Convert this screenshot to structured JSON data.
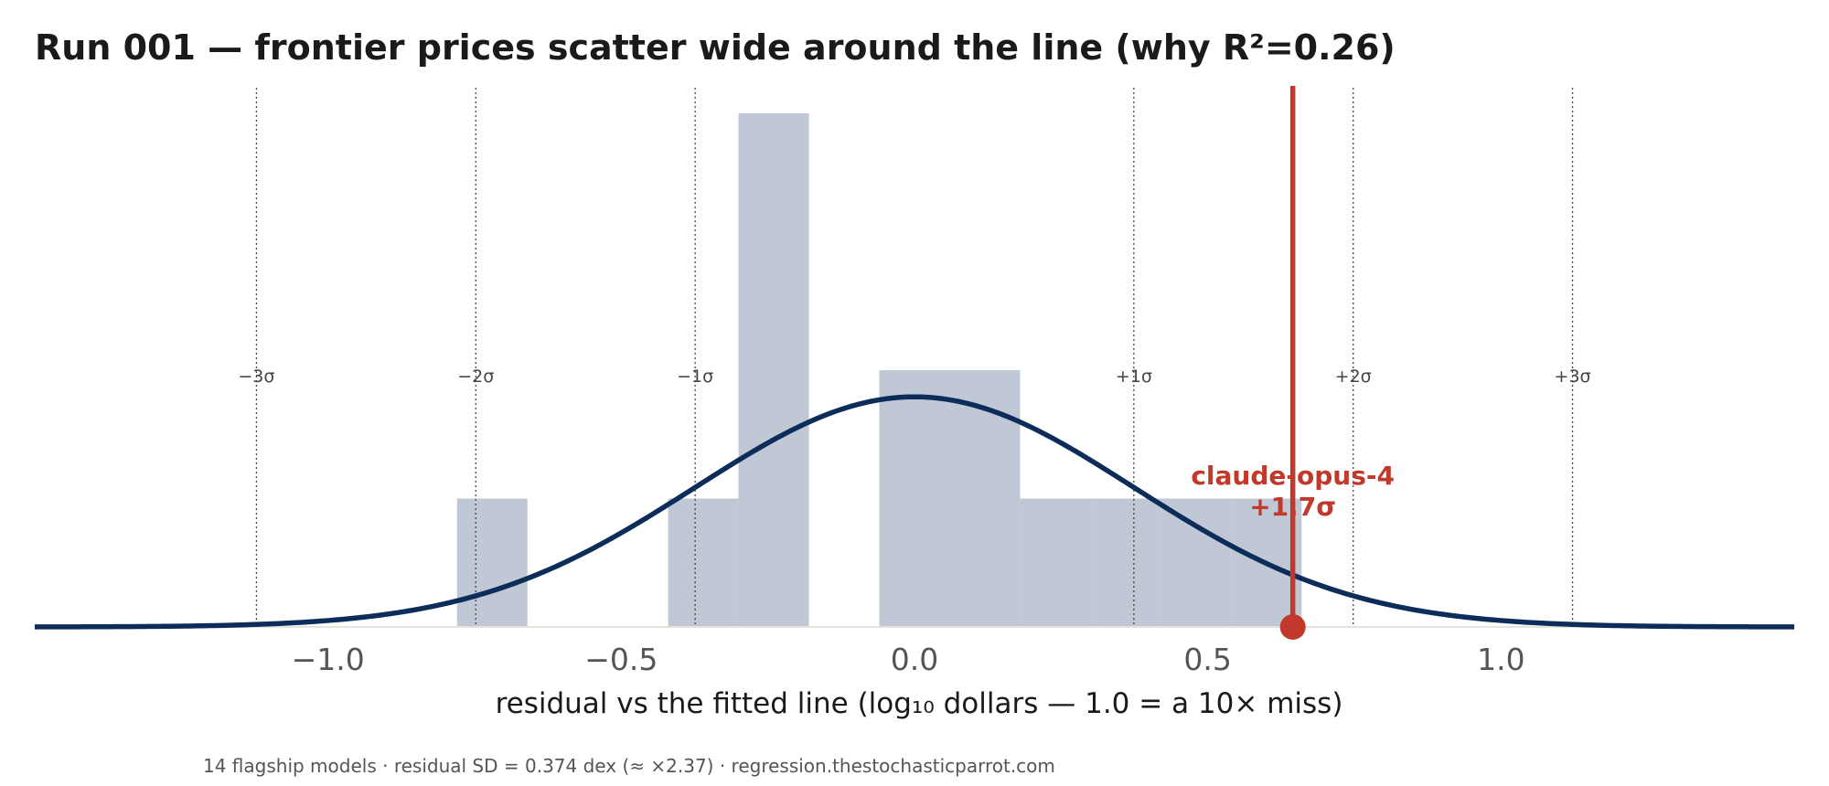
{
  "chart_data": {
    "type": "bar",
    "title": "Run 001 — frontier prices scatter wide around the line (why R²=0.26)",
    "xlabel": "residual vs the fitted line  (log₁₀ dollars — 1.0 = a 10× miss)",
    "ylabel": "",
    "xlim": [
      -1.5,
      1.5
    ],
    "x_ticks": [
      -1.0,
      -0.5,
      0.0,
      0.5,
      1.0
    ],
    "x_tick_labels": [
      "−1.0",
      "−0.5",
      "0.0",
      "0.5",
      "1.0"
    ],
    "histogram": {
      "bin_width": 0.12,
      "bins": [
        {
          "x0": -0.78,
          "x1": -0.66,
          "count": 1
        },
        {
          "x0": -0.42,
          "x1": -0.3,
          "count": 1
        },
        {
          "x0": -0.3,
          "x1": -0.18,
          "count": 4
        },
        {
          "x0": -0.06,
          "x1": 0.06,
          "count": 2
        },
        {
          "x0": 0.06,
          "x1": 0.18,
          "count": 2
        },
        {
          "x0": 0.18,
          "x1": 0.3,
          "count": 1
        },
        {
          "x0": 0.3,
          "x1": 0.42,
          "count": 1
        },
        {
          "x0": 0.42,
          "x1": 0.54,
          "count": 1
        },
        {
          "x0": 0.54,
          "x1": 0.66,
          "count": 1
        }
      ]
    },
    "normal_curve": {
      "mean": 0.0,
      "sd": 0.374
    },
    "sigma_lines": [
      {
        "sigma": -3,
        "label": "−3σ"
      },
      {
        "sigma": -2,
        "label": "−2σ"
      },
      {
        "sigma": -1,
        "label": "−1σ"
      },
      {
        "sigma": 1,
        "label": "+1σ"
      },
      {
        "sigma": 2,
        "label": "+2σ"
      },
      {
        "sigma": 3,
        "label": "+3σ"
      }
    ],
    "highlight": {
      "label": "claude-opus-4",
      "sigma_label": "+1.7σ",
      "x": 0.645
    },
    "grid": false
  },
  "footnote": "14 flagship models · residual SD = 0.374 dex (≈ ×2.37) · regression.thestochasticparrot.com",
  "colors": {
    "bars": "#c0c7d5",
    "curve": "#0c2d5a",
    "highlight": "#c0392b",
    "sigma_line": "#444444",
    "axis": "#e6e2dc",
    "tick_text": "#555555",
    "label_text": "#1a1a1a"
  }
}
